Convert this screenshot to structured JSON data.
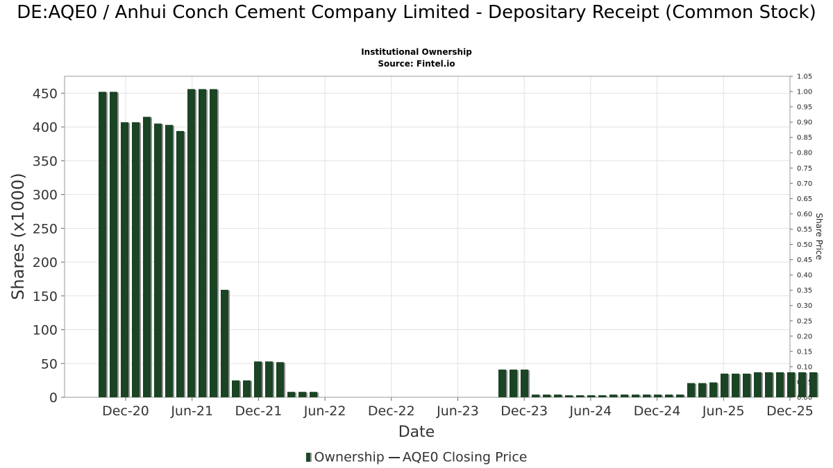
{
  "chart_data": {
    "type": "bar",
    "title": "DE:AQE0 / Anhui Conch Cement Company Limited - Depositary Receipt (Common Stock)",
    "subtitle": "Institutional Ownership",
    "source": "Source: Fintel.io",
    "xlabel": "Date",
    "ylabel": "Shares (x1000)",
    "y2label": "Share Price",
    "ylim": [
      0,
      475
    ],
    "y2lim": [
      0,
      1.05
    ],
    "yticks": [
      0,
      50,
      100,
      150,
      200,
      250,
      300,
      350,
      400,
      450
    ],
    "y2ticks": [
      "0.00",
      "0.05",
      "0.10",
      "0.15",
      "0.20",
      "0.25",
      "0.30",
      "0.35",
      "0.40",
      "0.45",
      "0.50",
      "0.55",
      "0.60",
      "0.65",
      "0.70",
      "0.75",
      "0.80",
      "0.85",
      "0.90",
      "0.95",
      "1.00",
      "1.05"
    ],
    "xticks": [
      "Dec-20",
      "Jun-21",
      "Dec-21",
      "Jun-22",
      "Dec-22",
      "Jun-23",
      "Dec-23",
      "Jun-24",
      "Dec-24",
      "Jun-25",
      "Dec-25"
    ],
    "grid": true,
    "legend_position": "bottom",
    "series": [
      {
        "name": "Ownership",
        "values": [
          452,
          452,
          407,
          407,
          415,
          405,
          403,
          394,
          456,
          456,
          456,
          159,
          25,
          25,
          53,
          53,
          52,
          8,
          8,
          8,
          0,
          0,
          0,
          0,
          0,
          0,
          0,
          0,
          0,
          0,
          0,
          0,
          0,
          0,
          0,
          0,
          41,
          41,
          41,
          4,
          4,
          4,
          3,
          3,
          3,
          3,
          4,
          4,
          4,
          4,
          4,
          4,
          4,
          21,
          21,
          22,
          35,
          35,
          35,
          37,
          37,
          37,
          37,
          37,
          37
        ]
      },
      {
        "name": "AQE0 Closing Price",
        "values": []
      }
    ]
  }
}
